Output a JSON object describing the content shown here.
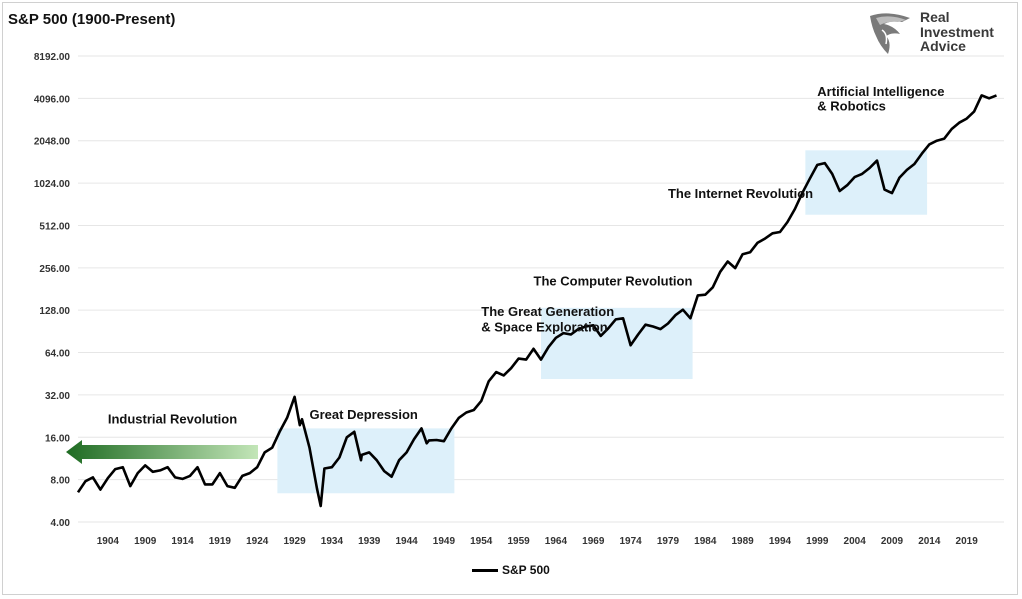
{
  "chart_data": {
    "type": "line",
    "title": "S&P 500 (1900-Present)",
    "scale": "log2",
    "ylim": [
      4,
      8192
    ],
    "xlim": [
      1900,
      2024
    ],
    "y_ticks": [
      "4.00",
      "8.00",
      "16.00",
      "32.00",
      "64.00",
      "128.00",
      "256.00",
      "512.00",
      "1024.00",
      "2048.00",
      "4096.00",
      "8192.00"
    ],
    "x_ticks": [
      "1904",
      "1909",
      "1914",
      "1919",
      "1924",
      "1929",
      "1934",
      "1939",
      "1944",
      "1949",
      "1954",
      "1959",
      "1964",
      "1969",
      "1974",
      "1979",
      "1984",
      "1989",
      "1994",
      "1999",
      "2004",
      "2009",
      "2014",
      "2019"
    ],
    "series": [
      {
        "name": "S&P 500",
        "color": "#000000",
        "x": [
          1900,
          1901,
          1902,
          1903,
          1904,
          1905,
          1906,
          1907,
          1908,
          1909,
          1910,
          1911,
          1912,
          1913,
          1914,
          1915,
          1916,
          1917,
          1918,
          1919,
          1920,
          1921,
          1922,
          1923,
          1924,
          1925,
          1926,
          1927,
          1928,
          1929,
          1929.7,
          1930,
          1931,
          1932,
          1932.5,
          1933,
          1934,
          1935,
          1936,
          1937,
          1937.9,
          1938,
          1939,
          1940,
          1941,
          1942,
          1943,
          1944,
          1945,
          1946,
          1946.7,
          1947,
          1948,
          1949,
          1950,
          1951,
          1952,
          1953,
          1954,
          1955,
          1956,
          1957,
          1958,
          1959,
          1960,
          1961,
          1962,
          1963,
          1964,
          1965,
          1966,
          1967,
          1968,
          1969,
          1970,
          1971,
          1972,
          1973,
          1974,
          1975,
          1976,
          1977,
          1978,
          1979,
          1980,
          1981,
          1982,
          1983,
          1984,
          1985,
          1986,
          1987,
          1988,
          1989,
          1990,
          1991,
          1992,
          1993,
          1994,
          1995,
          1996,
          1997,
          1998,
          1999,
          2000,
          2001,
          2002,
          2003,
          2004,
          2005,
          2006,
          2007,
          2008,
          2009,
          2010,
          2011,
          2012,
          2013,
          2014,
          2015,
          2016,
          2017,
          2018,
          2019,
          2020,
          2021,
          2022,
          2023
        ],
        "values": [
          6.5,
          7.8,
          8.3,
          6.8,
          8.2,
          9.5,
          9.8,
          7.2,
          8.9,
          10.1,
          9.1,
          9.3,
          9.8,
          8.3,
          8.1,
          8.5,
          9.8,
          7.4,
          7.4,
          8.9,
          7.2,
          7.0,
          8.5,
          8.9,
          9.8,
          12.5,
          13.5,
          17.5,
          22.0,
          31.0,
          19.5,
          21.5,
          13.5,
          6.9,
          5.2,
          9.6,
          9.8,
          11.5,
          16.0,
          17.5,
          11.0,
          12.0,
          12.5,
          11.0,
          9.2,
          8.4,
          11.0,
          12.5,
          15.5,
          18.5,
          14.5,
          15.2,
          15.3,
          15.0,
          18.5,
          22.0,
          24.0,
          25.0,
          29.0,
          40.0,
          46.5,
          44.0,
          49.5,
          58.0,
          57.0,
          68.0,
          57.0,
          70.0,
          81.5,
          88.0,
          86.0,
          94.0,
          98.0,
          100.0,
          84.0,
          95.0,
          110.0,
          112.0,
          72.0,
          86.0,
          101.0,
          98.0,
          94.0,
          103.0,
          118.0,
          129.0,
          112.0,
          163.0,
          165.0,
          186.0,
          240.0,
          284.0,
          255.0,
          320.0,
          330.0,
          386.0,
          413.0,
          450.0,
          460.0,
          541.0,
          670.0,
          874.0,
          1100.0,
          1380.0,
          1420.0,
          1190.0,
          900.0,
          990.0,
          1130.0,
          1190.0,
          1310.0,
          1480.0,
          920.0,
          870.0,
          1120.0,
          1270.0,
          1400.0,
          1660.0,
          1930.0,
          2050.0,
          2120.0,
          2480.0,
          2750.0,
          2940.0,
          3300.0,
          4300.0,
          4100.0,
          4300
        ]
      }
    ],
    "annotations": [
      {
        "text": "Industrial Revolution",
        "x": 1904,
        "y": 20
      },
      {
        "text": "Great Depression",
        "x": 1931,
        "y": 21.5
      },
      {
        "text": "The Great Generation",
        "x": 1954,
        "y": 116
      },
      {
        "text": "& Space Exploration",
        "x": 1954,
        "y": 90
      },
      {
        "text": "The Computer Revolution",
        "x": 1961,
        "y": 192
      },
      {
        "text": "The Internet Revolution",
        "x": 1979,
        "y": 800
      },
      {
        "text": "Artificial Intelligence",
        "x": 1999,
        "y": 4250
      },
      {
        "text": "& Robotics",
        "x": 1999,
        "y": 3350
      }
    ],
    "shaded_regions": [
      {
        "x": [
          1926.7,
          1950.4
        ],
        "y": [
          6.4,
          18.5
        ]
      },
      {
        "x": [
          1962.0,
          1982.3
        ],
        "y": [
          41.5,
          133
        ]
      },
      {
        "x": [
          1997.4,
          2013.7
        ],
        "y": [
          610,
          1750
        ]
      }
    ],
    "arrow": {
      "label": "Industrial Revolution",
      "direction": "left",
      "color": "#2e7d32"
    },
    "legend_position": "bottom-center",
    "grid": true
  },
  "brand": {
    "line1": "Real",
    "line2": "Investment",
    "line3": "Advice"
  },
  "legend_label": "S&P 500"
}
